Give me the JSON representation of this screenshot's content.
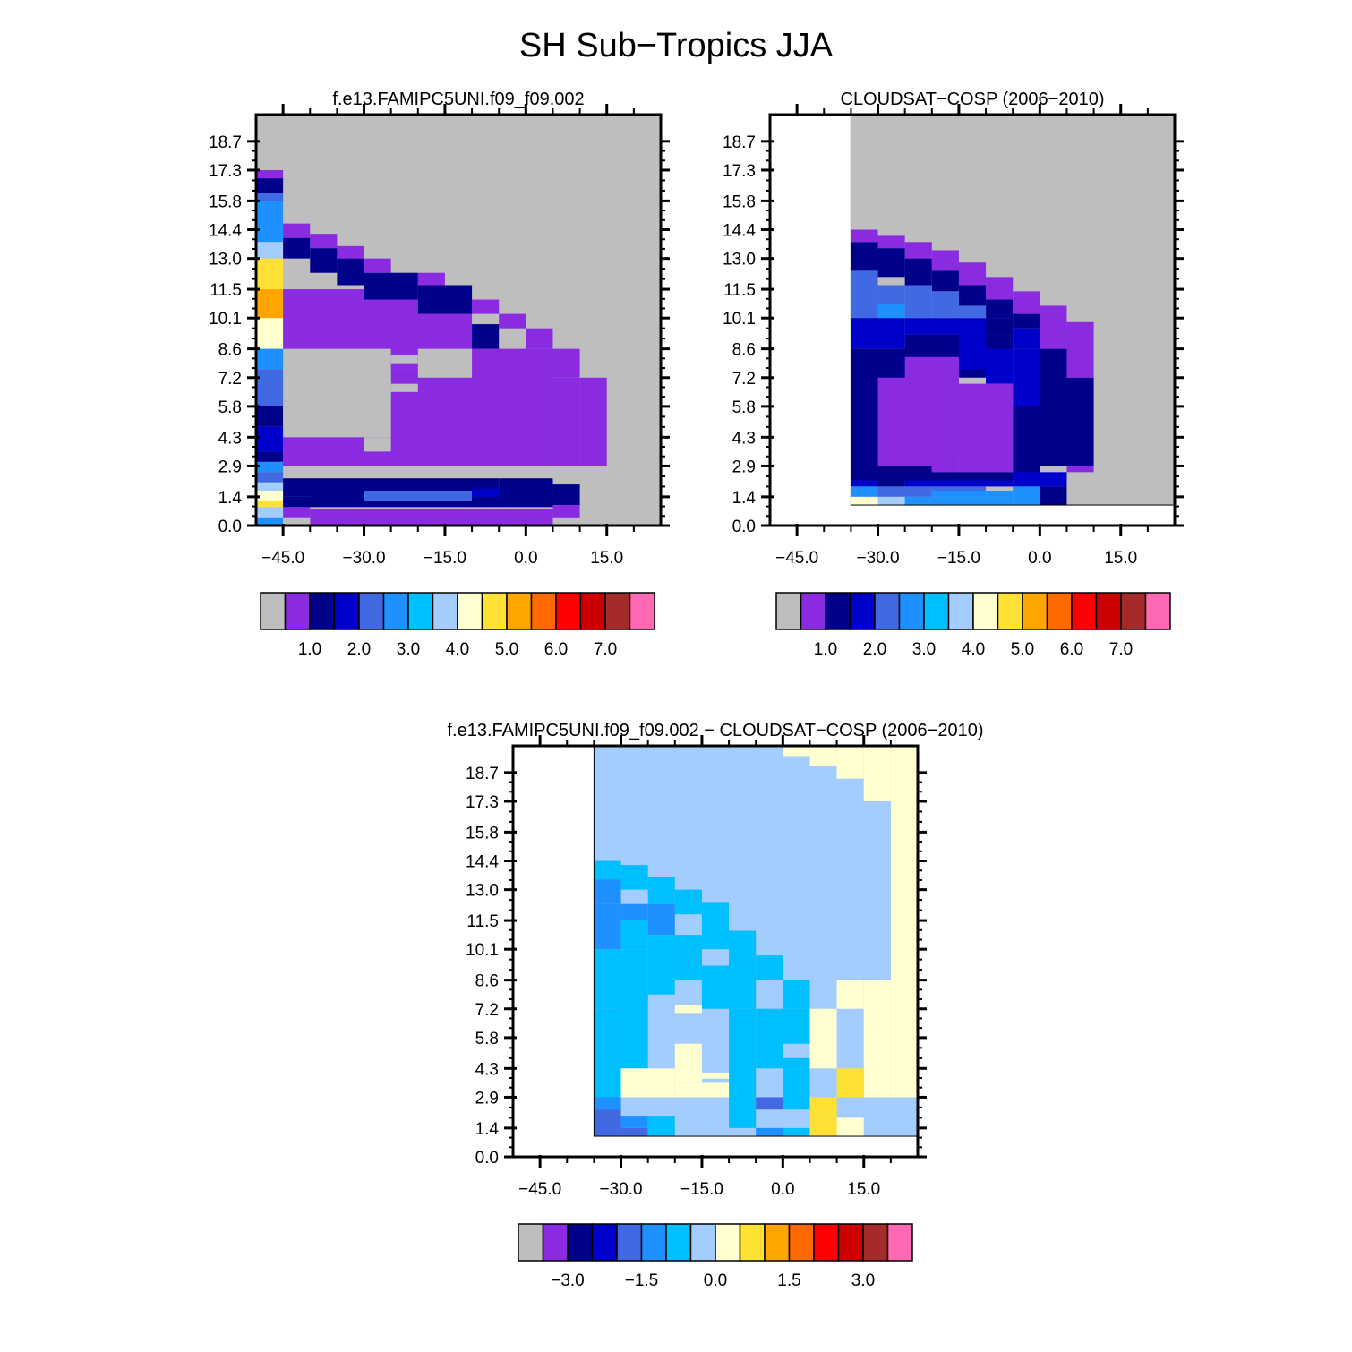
{
  "figure": {
    "title": "SH Sub−Tropics JJA"
  },
  "colors": {
    "levels": [
      "#BEBEBE",
      "#8A2BE2",
      "#00008B",
      "#0000CD",
      "#4169E1",
      "#1E90FF",
      "#00BFFF",
      "#A3CCFF",
      "#FFFFD0",
      "#FFE135",
      "#FFA500",
      "#FF6A00",
      "#FF0000",
      "#CD0000",
      "#A52A2A",
      "#FF69B4"
    ]
  },
  "chart_data": [
    {
      "type": "heatmap",
      "title": "f.e13.FAMIPC5UNI.f09_f09.002",
      "xlim": [
        -50,
        25
      ],
      "ylim": [
        0,
        20
      ],
      "x_ticks": [
        "−45.0",
        "−30.0",
        "−15.0",
        "0.0",
        "15.0"
      ],
      "x_tick_values": [
        -45,
        -30,
        -15,
        0,
        15
      ],
      "y_ticks": [
        "0.0",
        "1.4",
        "2.9",
        "4.3",
        "5.8",
        "7.2",
        "8.6",
        "10.1",
        "11.5",
        "13.0",
        "14.4",
        "15.8",
        "17.3",
        "18.7"
      ],
      "y_tick_values": [
        0.0,
        1.4,
        2.9,
        4.3,
        5.8,
        7.2,
        8.6,
        10.1,
        11.5,
        13.0,
        14.4,
        15.8,
        17.3,
        18.7
      ],
      "background": "#BEBEBE",
      "cells": [
        [
          -50,
          -45,
          16.9,
          17.3,
          1
        ],
        [
          -50,
          -45,
          16.2,
          16.9,
          2
        ],
        [
          -50,
          -45,
          15.8,
          16.2,
          4
        ],
        [
          -50,
          -45,
          13.8,
          15.8,
          5
        ],
        [
          -50,
          -45,
          13.0,
          13.8,
          7
        ],
        [
          -50,
          -45,
          11.5,
          13.0,
          9
        ],
        [
          -50,
          -45,
          10.1,
          11.5,
          10
        ],
        [
          -50,
          -45,
          8.6,
          10.1,
          8
        ],
        [
          -50,
          -45,
          7.6,
          8.6,
          5
        ],
        [
          -50,
          -45,
          5.8,
          7.6,
          4
        ],
        [
          -50,
          -45,
          4.8,
          5.8,
          2
        ],
        [
          -50,
          -45,
          3.6,
          4.8,
          3
        ],
        [
          -50,
          -45,
          3.1,
          3.6,
          2
        ],
        [
          -50,
          -45,
          2.6,
          3.1,
          5
        ],
        [
          -50,
          -45,
          2.1,
          2.6,
          4
        ],
        [
          -50,
          -45,
          1.7,
          2.1,
          7
        ],
        [
          -50,
          -45,
          1.2,
          1.7,
          8
        ],
        [
          -50,
          -45,
          0.9,
          1.2,
          9
        ],
        [
          -50,
          -45,
          0.4,
          0.9,
          7
        ],
        [
          -50,
          -45,
          0.0,
          0.4,
          5
        ],
        [
          -45,
          -40,
          14.0,
          14.7,
          1
        ],
        [
          -40,
          -35,
          13.5,
          14.2,
          1
        ],
        [
          -35,
          -30,
          13.0,
          13.6,
          1
        ],
        [
          -30,
          -25,
          12.3,
          13.0,
          1
        ],
        [
          -20,
          -15,
          11.7,
          12.3,
          1
        ],
        [
          -15,
          -10,
          11.0,
          11.7,
          1
        ],
        [
          -10,
          -5,
          10.3,
          11.0,
          1
        ],
        [
          -5,
          0,
          9.6,
          10.3,
          1
        ],
        [
          0,
          5,
          8.6,
          9.6,
          1
        ],
        [
          5,
          10,
          7.2,
          8.6,
          1
        ],
        [
          10,
          15,
          2.9,
          7.2,
          1
        ],
        [
          -45,
          -20,
          7.6,
          11.5,
          1
        ],
        [
          -25,
          -10,
          8.6,
          10.3,
          1
        ],
        [
          -45,
          -40,
          2.9,
          7.6,
          1
        ],
        [
          -30,
          -25,
          7.2,
          8.6,
          1
        ],
        [
          -35,
          -5,
          2.9,
          7.2,
          1
        ],
        [
          -10,
          5,
          2.9,
          8.6,
          1
        ],
        [
          5,
          10,
          2.9,
          7.2,
          1
        ],
        [
          -45,
          -40,
          13.0,
          14.0,
          2
        ],
        [
          -40,
          -35,
          12.3,
          13.5,
          2
        ],
        [
          -35,
          -30,
          11.7,
          13.0,
          2
        ],
        [
          -30,
          -20,
          11.0,
          12.3,
          2
        ],
        [
          -20,
          -10,
          10.3,
          11.7,
          2
        ],
        [
          -10,
          -5,
          8.6,
          9.8,
          2
        ],
        [
          -45,
          -20,
          2.9,
          7.6,
          1
        ],
        [
          -45,
          -5,
          1.4,
          2.3,
          2
        ],
        [
          -5,
          5,
          1.0,
          2.3,
          2
        ],
        [
          5,
          10,
          1.0,
          2.0,
          2
        ],
        [
          -45,
          5,
          0.9,
          1.4,
          2
        ],
        [
          -40,
          -5,
          1.4,
          1.9,
          2
        ],
        [
          -30,
          -10,
          1.2,
          1.7,
          4
        ],
        [
          -10,
          -5,
          1.4,
          1.8,
          3
        ],
        [
          -45,
          -40,
          0.4,
          0.9,
          1
        ],
        [
          -40,
          5,
          0.0,
          0.8,
          1
        ],
        [
          5,
          10,
          0.4,
          1.0,
          1
        ],
        [
          -45,
          -40,
          0.0,
          0.4,
          0
        ]
      ],
      "masks": [
        [
          -45,
          -25,
          4.3,
          8.6,
          0
        ],
        [
          -30,
          -25,
          3.6,
          4.3,
          0
        ],
        [
          -25,
          -20,
          7.9,
          8.3,
          0
        ],
        [
          -25,
          -20,
          6.5,
          6.9,
          0
        ],
        [
          -30,
          -25,
          6.2,
          7.6,
          0
        ]
      ],
      "colorbar": {
        "labels": [
          "1.0",
          "2.0",
          "3.0",
          "4.0",
          "5.0",
          "6.0",
          "7.0"
        ],
        "label_after_box": [
          1,
          3,
          5,
          7,
          9,
          11,
          13
        ]
      }
    },
    {
      "type": "heatmap",
      "title": "CLOUDSAT−COSP (2006−2010)",
      "xlim": [
        -50,
        25
      ],
      "ylim": [
        0,
        20
      ],
      "x_ticks": [
        "−45.0",
        "−30.0",
        "−15.0",
        "0.0",
        "15.0"
      ],
      "x_tick_values": [
        -45,
        -30,
        -15,
        0,
        15
      ],
      "y_ticks": [
        "0.0",
        "1.4",
        "2.9",
        "4.3",
        "5.8",
        "7.2",
        "8.6",
        "10.1",
        "11.5",
        "13.0",
        "14.4",
        "15.8",
        "17.3",
        "18.7"
      ],
      "y_tick_values": [
        0.0,
        1.4,
        2.9,
        4.3,
        5.8,
        7.2,
        8.6,
        10.1,
        11.5,
        13.0,
        14.4,
        15.8,
        17.3,
        18.7
      ],
      "data_extent": [
        -35,
        25,
        1.0,
        20
      ],
      "background": "#BEBEBE",
      "cells": [
        [
          -35,
          -30,
          13.8,
          14.4,
          1
        ],
        [
          -30,
          -25,
          13.5,
          14.1,
          1
        ],
        [
          -25,
          -20,
          13.0,
          13.8,
          1
        ],
        [
          -20,
          -15,
          12.4,
          13.4,
          1
        ],
        [
          -15,
          -10,
          11.7,
          12.8,
          1
        ],
        [
          -10,
          -5,
          11.0,
          12.1,
          1
        ],
        [
          -5,
          0,
          10.3,
          11.4,
          1
        ],
        [
          0,
          5,
          8.6,
          10.7,
          1
        ],
        [
          5,
          10,
          7.2,
          9.9,
          1
        ],
        [
          -35,
          -30,
          12.4,
          13.8,
          2
        ],
        [
          -30,
          -25,
          12.1,
          13.5,
          2
        ],
        [
          -25,
          -20,
          11.7,
          13.0,
          2
        ],
        [
          -20,
          -15,
          11.4,
          12.4,
          2
        ],
        [
          -15,
          -10,
          10.7,
          11.7,
          2
        ],
        [
          -10,
          -5,
          10.1,
          11.0,
          2
        ],
        [
          -5,
          0,
          9.6,
          10.3,
          2
        ],
        [
          -35,
          -30,
          9.8,
          12.4,
          4
        ],
        [
          -30,
          -25,
          10.8,
          11.7,
          4
        ],
        [
          -30,
          -25,
          10.1,
          10.8,
          5
        ],
        [
          -25,
          -20,
          10.1,
          11.7,
          4
        ],
        [
          -20,
          -15,
          10.1,
          11.4,
          4
        ],
        [
          -15,
          -10,
          10.1,
          10.7,
          4
        ],
        [
          -35,
          -25,
          8.6,
          10.1,
          3
        ],
        [
          -25,
          -5,
          9.3,
          10.1,
          3
        ],
        [
          -10,
          -5,
          9.3,
          10.1,
          2
        ],
        [
          -5,
          0,
          8.6,
          9.6,
          3
        ],
        [
          -35,
          -20,
          2.2,
          8.6,
          2
        ],
        [
          -25,
          -5,
          7.2,
          9.3,
          2
        ],
        [
          -15,
          -10,
          7.6,
          9.3,
          3
        ],
        [
          -10,
          -5,
          6.9,
          8.6,
          3
        ],
        [
          -5,
          0,
          5.8,
          8.6,
          3
        ],
        [
          0,
          5,
          2.9,
          8.6,
          2
        ],
        [
          5,
          10,
          2.9,
          7.2,
          2
        ],
        [
          -5,
          0,
          2.2,
          5.8,
          2
        ],
        [
          -30,
          -20,
          2.9,
          7.2,
          1
        ],
        [
          -25,
          -15,
          3.6,
          8.2,
          1
        ],
        [
          -15,
          -5,
          2.6,
          6.9,
          1
        ],
        [
          -20,
          -15,
          2.6,
          7.9,
          1
        ],
        [
          -35,
          -30,
          2.9,
          3.6,
          2
        ],
        [
          5,
          10,
          2.6,
          2.9,
          1
        ],
        [
          -35,
          -5,
          2.2,
          2.6,
          2
        ],
        [
          -35,
          -30,
          1.9,
          2.2,
          3
        ],
        [
          -30,
          -25,
          1.9,
          2.2,
          2
        ],
        [
          -25,
          -5,
          1.9,
          2.2,
          3
        ],
        [
          -5,
          5,
          1.9,
          2.6,
          3
        ],
        [
          -35,
          -30,
          1.4,
          1.9,
          5
        ],
        [
          -30,
          -20,
          1.4,
          1.9,
          4
        ],
        [
          -20,
          -10,
          1.7,
          1.9,
          4
        ],
        [
          -20,
          -5,
          1.4,
          1.7,
          5
        ],
        [
          -5,
          0,
          1.0,
          1.9,
          5
        ],
        [
          0,
          5,
          1.0,
          1.9,
          2
        ],
        [
          -35,
          -30,
          1.0,
          1.4,
          8
        ],
        [
          -30,
          -25,
          1.0,
          1.4,
          7
        ],
        [
          -25,
          -5,
          1.0,
          1.4,
          5
        ]
      ],
      "colorbar": {
        "labels": [
          "1.0",
          "2.0",
          "3.0",
          "4.0",
          "5.0",
          "6.0",
          "7.0"
        ],
        "label_after_box": [
          1,
          3,
          5,
          7,
          9,
          11,
          13
        ]
      }
    },
    {
      "type": "heatmap",
      "title": "f.e13.FAMIPC5UNI.f09_f09.002 − CLOUDSAT−COSP (2006−2010)",
      "xlim": [
        -50,
        25
      ],
      "ylim": [
        0,
        20
      ],
      "x_ticks": [
        "−45.0",
        "−30.0",
        "−15.0",
        "0.0",
        "15.0"
      ],
      "x_tick_values": [
        -45,
        -30,
        -15,
        0,
        15
      ],
      "y_ticks": [
        "0.0",
        "1.4",
        "2.9",
        "4.3",
        "5.8",
        "7.2",
        "8.6",
        "10.1",
        "11.5",
        "13.0",
        "14.4",
        "15.8",
        "17.3",
        "18.7"
      ],
      "y_tick_values": [
        0.0,
        1.4,
        2.9,
        4.3,
        5.8,
        7.2,
        8.6,
        10.1,
        11.5,
        13.0,
        14.4,
        15.8,
        17.3,
        18.7
      ],
      "data_extent": [
        -35,
        25,
        1.0,
        20
      ],
      "background": "#A3CCFF",
      "cells": [
        [
          0,
          5,
          19.5,
          20,
          8
        ],
        [
          5,
          10,
          19.0,
          20,
          8
        ],
        [
          10,
          15,
          18.4,
          20,
          8
        ],
        [
          15,
          20,
          17.3,
          20,
          8
        ],
        [
          20,
          25,
          1.4,
          20,
          8
        ],
        [
          15,
          20,
          8.6,
          17.3,
          7
        ],
        [
          10,
          15,
          7.2,
          8.6,
          8
        ],
        [
          15,
          20,
          2.9,
          8.6,
          8
        ],
        [
          5,
          10,
          4.3,
          7.2,
          8
        ],
        [
          10,
          15,
          2.9,
          4.3,
          9
        ],
        [
          5,
          10,
          1.8,
          2.9,
          9
        ],
        [
          10,
          15,
          1.0,
          1.9,
          8
        ],
        [
          5,
          10,
          1.0,
          1.8,
          9
        ],
        [
          0,
          5,
          1.0,
          1.4,
          8
        ],
        [
          20,
          25,
          1.0,
          2.9,
          7
        ],
        [
          -35,
          -30,
          13.5,
          14.4,
          6
        ],
        [
          -30,
          -25,
          13.0,
          14.2,
          6
        ],
        [
          -25,
          -20,
          12.3,
          13.6,
          6
        ],
        [
          -20,
          -15,
          11.8,
          13.0,
          6
        ],
        [
          -15,
          -10,
          10.1,
          12.4,
          6
        ],
        [
          -10,
          -5,
          9.3,
          11.0,
          6
        ],
        [
          -5,
          0,
          8.6,
          9.8,
          6
        ],
        [
          0,
          5,
          7.2,
          8.6,
          6
        ],
        [
          -35,
          -30,
          12.3,
          13.5,
          5
        ],
        [
          -30,
          -25,
          11.5,
          12.3,
          5
        ],
        [
          -25,
          -20,
          10.8,
          12.3,
          5
        ],
        [
          -35,
          -30,
          10.1,
          12.3,
          5
        ],
        [
          -30,
          -25,
          10.1,
          11.5,
          6
        ],
        [
          -25,
          -15,
          8.6,
          10.8,
          6
        ],
        [
          -35,
          -25,
          7.2,
          10.1,
          6
        ],
        [
          -20,
          -15,
          8.6,
          10.5,
          6
        ],
        [
          -15,
          -5,
          7.2,
          9.3,
          6
        ],
        [
          -5,
          5,
          4.3,
          7.2,
          6
        ],
        [
          0,
          5,
          1.0,
          6.0,
          6
        ],
        [
          -10,
          -5,
          1.4,
          7.2,
          6
        ],
        [
          -35,
          -30,
          1.7,
          7.2,
          6
        ],
        [
          -30,
          -25,
          4.3,
          7.9,
          6
        ],
        [
          -25,
          -20,
          7.9,
          8.6,
          6
        ],
        [
          -35,
          -30,
          1.0,
          1.7,
          4
        ],
        [
          -35,
          -30,
          2.3,
          2.9,
          5
        ],
        [
          -35,
          -30,
          1.4,
          2.3,
          4
        ],
        [
          -30,
          -25,
          1.0,
          1.4,
          4
        ],
        [
          -30,
          -25,
          1.4,
          2.0,
          5
        ],
        [
          -25,
          -20,
          1.0,
          2.0,
          6
        ],
        [
          -5,
          0,
          1.0,
          1.4,
          5
        ],
        [
          -5,
          0,
          2.3,
          2.9,
          4
        ],
        [
          0,
          5,
          1.4,
          2.3,
          7
        ],
        [
          0,
          5,
          4.8,
          5.5,
          7
        ],
        [
          -30,
          -20,
          2.9,
          4.3,
          8
        ],
        [
          -20,
          -15,
          3.6,
          5.5,
          8
        ],
        [
          -20,
          -10,
          2.9,
          3.6,
          8
        ],
        [
          -15,
          -10,
          3.8,
          4.1,
          8
        ],
        [
          -20,
          -15,
          7.0,
          7.4,
          8
        ]
      ],
      "colorbar": {
        "labels": [
          "−3.0",
          "−1.5",
          "0.0",
          "1.5",
          "3.0"
        ],
        "label_after_box": [
          1,
          4,
          7,
          10,
          13
        ]
      }
    }
  ]
}
